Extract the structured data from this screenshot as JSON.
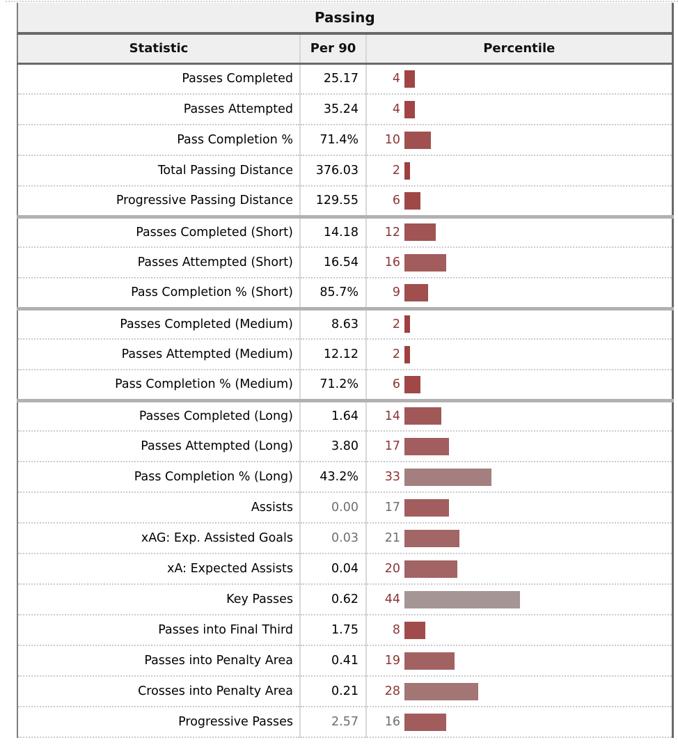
{
  "title": "Passing",
  "columns": {
    "statistic": "Statistic",
    "per90": "Per 90",
    "percentile": "Percentile"
  },
  "colors": {
    "header_bg": "#efefef",
    "dark_border": "#696969",
    "group_separator": "#b3b0b0",
    "percentile_text": "#8e3434",
    "muted_text": "#6e6e6e",
    "bar_scale_low": "#9f3c3c",
    "bar_scale_mid": "#a7a1a1"
  },
  "rows": [
    {
      "statistic": "Passes Completed",
      "per90": "25.17",
      "percentile": 4,
      "muted": false,
      "group_start": false
    },
    {
      "statistic": "Passes Attempted",
      "per90": "35.24",
      "percentile": 4,
      "muted": false,
      "group_start": false
    },
    {
      "statistic": "Pass Completion %",
      "per90": "71.4%",
      "percentile": 10,
      "muted": false,
      "group_start": false
    },
    {
      "statistic": "Total Passing Distance",
      "per90": "376.03",
      "percentile": 2,
      "muted": false,
      "group_start": false
    },
    {
      "statistic": "Progressive Passing Distance",
      "per90": "129.55",
      "percentile": 6,
      "muted": false,
      "group_start": false
    },
    {
      "statistic": "Passes Completed (Short)",
      "per90": "14.18",
      "percentile": 12,
      "muted": false,
      "group_start": true
    },
    {
      "statistic": "Passes Attempted (Short)",
      "per90": "16.54",
      "percentile": 16,
      "muted": false,
      "group_start": false
    },
    {
      "statistic": "Pass Completion % (Short)",
      "per90": "85.7%",
      "percentile": 9,
      "muted": false,
      "group_start": false
    },
    {
      "statistic": "Passes Completed (Medium)",
      "per90": "8.63",
      "percentile": 2,
      "muted": false,
      "group_start": true
    },
    {
      "statistic": "Passes Attempted (Medium)",
      "per90": "12.12",
      "percentile": 2,
      "muted": false,
      "group_start": false
    },
    {
      "statistic": "Pass Completion % (Medium)",
      "per90": "71.2%",
      "percentile": 6,
      "muted": false,
      "group_start": false
    },
    {
      "statistic": "Passes Completed (Long)",
      "per90": "1.64",
      "percentile": 14,
      "muted": false,
      "group_start": true
    },
    {
      "statistic": "Passes Attempted (Long)",
      "per90": "3.80",
      "percentile": 17,
      "muted": false,
      "group_start": false
    },
    {
      "statistic": "Pass Completion % (Long)",
      "per90": "43.2%",
      "percentile": 33,
      "muted": false,
      "group_start": false
    },
    {
      "statistic": "Assists",
      "per90": "0.00",
      "percentile": 17,
      "muted": true,
      "group_start": false
    },
    {
      "statistic": "xAG: Exp. Assisted Goals",
      "per90": "0.03",
      "percentile": 21,
      "muted": true,
      "group_start": false
    },
    {
      "statistic": "xA: Expected Assists",
      "per90": "0.04",
      "percentile": 20,
      "muted": false,
      "group_start": false
    },
    {
      "statistic": "Key Passes",
      "per90": "0.62",
      "percentile": 44,
      "muted": false,
      "group_start": false
    },
    {
      "statistic": "Passes into Final Third",
      "per90": "1.75",
      "percentile": 8,
      "muted": false,
      "group_start": false
    },
    {
      "statistic": "Passes into Penalty Area",
      "per90": "0.41",
      "percentile": 19,
      "muted": false,
      "group_start": false
    },
    {
      "statistic": "Crosses into Penalty Area",
      "per90": "0.21",
      "percentile": 28,
      "muted": false,
      "group_start": false
    },
    {
      "statistic": "Progressive Passes",
      "per90": "2.57",
      "percentile": 16,
      "muted": true,
      "group_start": false
    }
  ],
  "chart_data": {
    "type": "bar",
    "orientation": "horizontal",
    "title": "Passing",
    "xlabel": "Percentile",
    "xlim": [
      0,
      100
    ],
    "categories": [
      "Passes Completed",
      "Passes Attempted",
      "Pass Completion %",
      "Total Passing Distance",
      "Progressive Passing Distance",
      "Passes Completed (Short)",
      "Passes Attempted (Short)",
      "Pass Completion % (Short)",
      "Passes Completed (Medium)",
      "Passes Attempted (Medium)",
      "Pass Completion % (Medium)",
      "Passes Completed (Long)",
      "Passes Attempted (Long)",
      "Pass Completion % (Long)",
      "Assists",
      "xAG: Exp. Assisted Goals",
      "xA: Expected Assists",
      "Key Passes",
      "Passes into Final Third",
      "Passes into Penalty Area",
      "Crosses into Penalty Area",
      "Progressive Passes"
    ],
    "series": [
      {
        "name": "Per 90",
        "values": [
          "25.17",
          "35.24",
          "71.4%",
          "376.03",
          "129.55",
          "14.18",
          "16.54",
          "85.7%",
          "8.63",
          "12.12",
          "71.2%",
          "1.64",
          "3.80",
          "43.2%",
          "0.00",
          "0.03",
          "0.04",
          "0.62",
          "1.75",
          "0.41",
          "0.21",
          "2.57"
        ]
      },
      {
        "name": "Percentile",
        "values": [
          4,
          4,
          10,
          2,
          6,
          12,
          16,
          9,
          2,
          2,
          6,
          14,
          17,
          33,
          17,
          21,
          20,
          44,
          8,
          19,
          28,
          16
        ]
      }
    ],
    "legend_position": "none",
    "grid": false
  }
}
